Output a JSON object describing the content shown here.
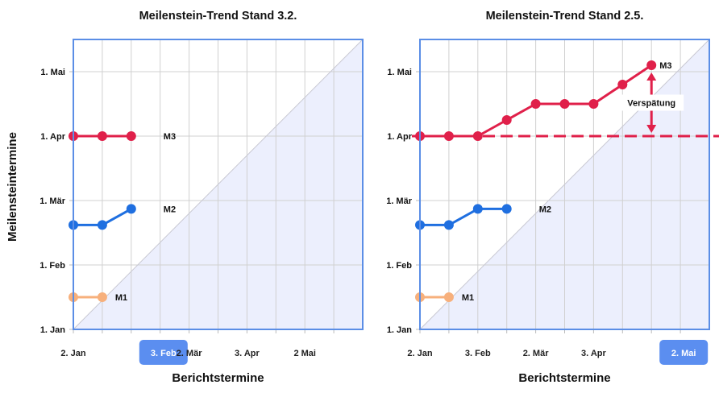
{
  "y_axis_title": "Meilensteintermine",
  "colors": {
    "frame": "#5b8ee6",
    "grid": "#d0d0d0",
    "diagonal_fill": "#eceffd",
    "highlight": "#5b8ef0",
    "M1": "#f7b07c",
    "M2": "#1f6fe0",
    "M3": "#e0204a"
  },
  "chart_data": [
    {
      "type": "line",
      "title": "Meilenstein-Trend Stand 3.2.",
      "xlabel": "Berichtstermine",
      "ylabel": "Meilensteintermine",
      "x_ticks": [
        "2. Jan",
        "",
        "3. Feb",
        "",
        "2. Mär",
        "",
        "3. Apr",
        "",
        "2 Mai",
        ""
      ],
      "x_highlight": "3. Feb",
      "y_ticks": [
        "1. Jan",
        "1. Feb",
        "1. Mär",
        "1. Apr",
        "1. Mai"
      ],
      "y_range": [
        0,
        4.5
      ],
      "grid": true,
      "diagonal": true,
      "series": [
        {
          "name": "M1",
          "color_key": "M1",
          "x": [
            0,
            1
          ],
          "y": [
            0.5,
            0.5
          ]
        },
        {
          "name": "M2",
          "color_key": "M2",
          "x": [
            0,
            1,
            2
          ],
          "y": [
            1.62,
            1.62,
            1.87
          ]
        },
        {
          "name": "M3",
          "color_key": "M3",
          "x": [
            0,
            1,
            2
          ],
          "y": [
            3.0,
            3.0,
            3.0
          ]
        }
      ]
    },
    {
      "type": "line",
      "title": "Meilenstein-Trend Stand 2.5.",
      "xlabel": "Berichtstermine",
      "ylabel": "Meilensteintermine",
      "x_ticks": [
        "2. Jan",
        "",
        "3. Feb",
        "",
        "2. Mär",
        "",
        "3. Apr",
        "",
        "2. Mai",
        ""
      ],
      "x_highlight": "2. Mai",
      "y_ticks": [
        "1. Jan",
        "1. Feb",
        "1. Mär",
        "1. Apr",
        "1. Mai"
      ],
      "y_range": [
        0,
        4.5
      ],
      "grid": true,
      "diagonal": true,
      "baseline": {
        "y": 3.0,
        "style": "dashed",
        "color_key": "M3"
      },
      "annotation": {
        "text": "Verspätung",
        "x": 8,
        "from": 3.0,
        "to": 4.1
      },
      "series": [
        {
          "name": "M1",
          "color_key": "M1",
          "x": [
            0,
            1
          ],
          "y": [
            0.5,
            0.5
          ]
        },
        {
          "name": "M2",
          "color_key": "M2",
          "x": [
            0,
            1,
            2,
            3
          ],
          "y": [
            1.62,
            1.62,
            1.87,
            1.87
          ]
        },
        {
          "name": "M3",
          "color_key": "M3",
          "x": [
            0,
            1,
            2,
            3,
            4,
            5,
            6,
            7,
            8
          ],
          "y": [
            3.0,
            3.0,
            3.0,
            3.25,
            3.5,
            3.5,
            3.5,
            3.8,
            4.1
          ]
        }
      ]
    }
  ]
}
